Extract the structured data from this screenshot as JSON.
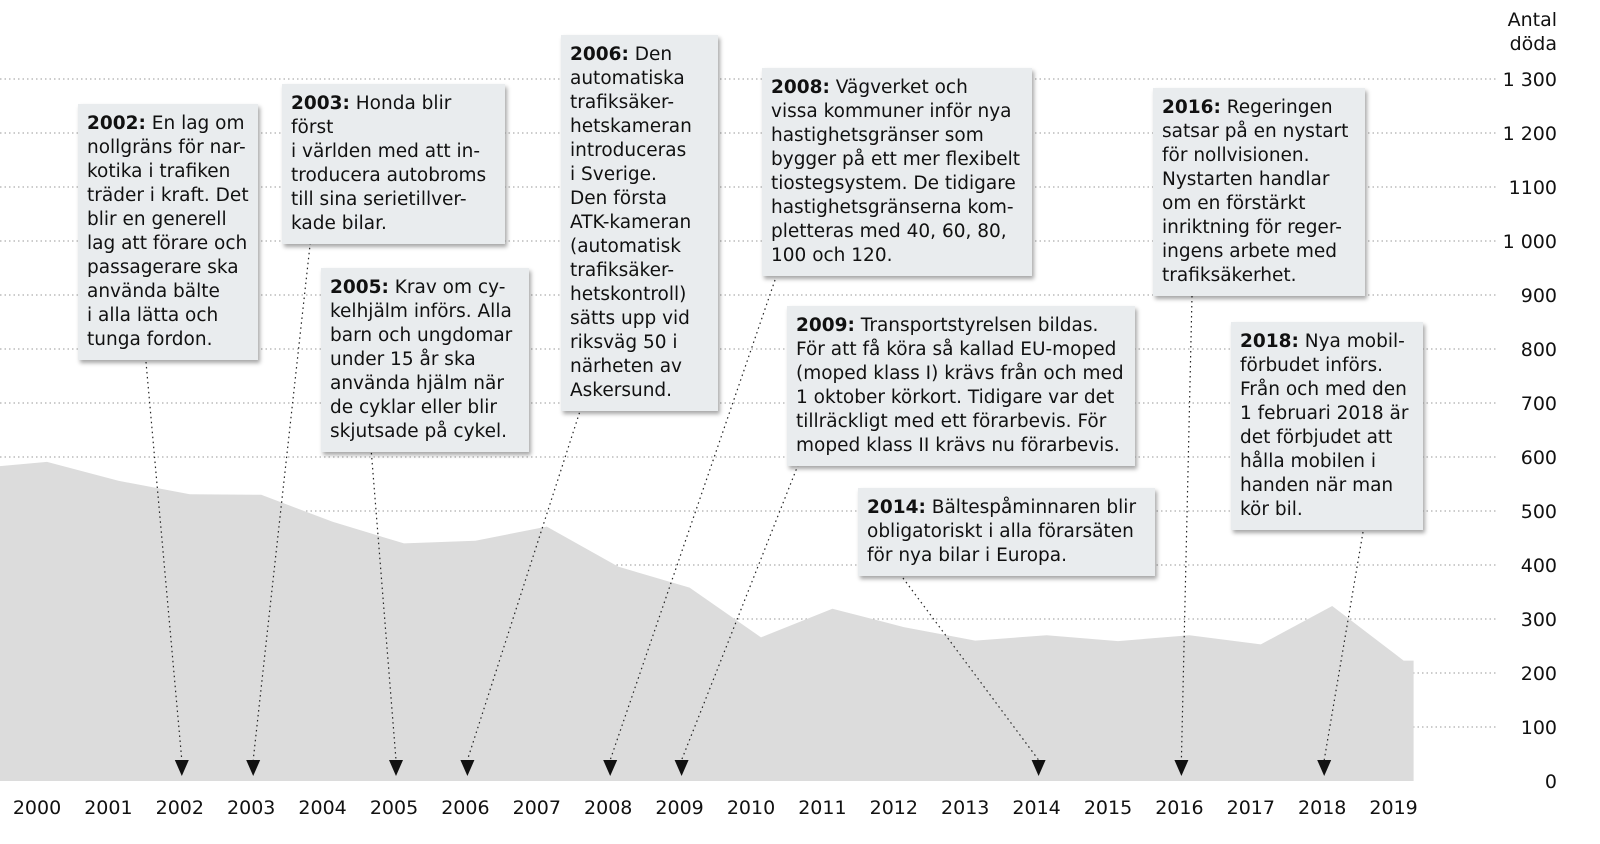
{
  "chart_data": {
    "type": "area",
    "x": [
      2000,
      2001,
      2002,
      2003,
      2004,
      2005,
      2006,
      2007,
      2008,
      2009,
      2010,
      2011,
      2012,
      2013,
      2014,
      2015,
      2016,
      2017,
      2018,
      2019
    ],
    "series": [
      {
        "values": [
          591,
          556,
          531,
          530,
          480,
          440,
          445,
          471,
          397,
          358,
          266,
          319,
          285,
          260,
          270,
          259,
          270,
          253,
          324,
          223
        ]
      }
    ],
    "ylabel": "Antal döda",
    "ylabel_lines": [
      "Antal",
      "döda"
    ],
    "ylim": [
      0,
      1300
    ],
    "yticks": [
      0,
      100,
      200,
      300,
      400,
      500,
      600,
      700,
      800,
      900,
      1000,
      1100,
      1200,
      1300
    ],
    "ytick_labels": [
      "0",
      "100",
      "200",
      "300",
      "400",
      "500",
      "600",
      "700",
      "800",
      "900",
      "1 000",
      "1100",
      "1 200",
      "1 300"
    ],
    "xtick_labels": [
      "2000",
      "2001",
      "2002",
      "2003",
      "2004",
      "2005",
      "2006",
      "2007",
      "2008",
      "2009",
      "2010",
      "2011",
      "2012",
      "2013",
      "2014",
      "2015",
      "2016",
      "2017",
      "2018",
      "2019"
    ],
    "grid": "horizontal-dotted",
    "colors": {
      "area": "#dcdcdc",
      "grid": "#9a9a9a",
      "text": "#111111"
    },
    "annotations": [
      {
        "year": "2002:",
        "text": " En lag om\nnollgräns för nar-\nkotika i trafiken\nträder i kraft. Det\nblir en generell\nlag att förare och\npassagerare ska\nanvända bälte\ni alla lätta och\ntunga fordon.",
        "target_year": 2002
      },
      {
        "year": "2003:",
        "text": " Honda blir först\ni världen med att in-\ntroducera autobroms\ntill sina serietillver-\nkade bilar.",
        "target_year": 2003
      },
      {
        "year": "2005:",
        "text": " Krav om cy-\nkelhjälm införs. Alla\nbarn och ungdomar\nunder 15 år ska\nanvända hjälm när\nde cyklar eller blir\nskjutsade på cykel.",
        "target_year": 2005
      },
      {
        "year": "2006:",
        "text": " Den\nautomatiska\ntrafiksäker-\nhetskameran\nintroduceras\ni Sverige.\nDen första\nATK-kameran\n(automatisk\ntrafiksäker-\nhetskontroll)\nsätts upp vid\nriksväg 50 i\nnärheten av\nAskersund.",
        "target_year": 2006
      },
      {
        "year": "2008:",
        "text": "  Vägverket och\nvissa kommuner inför nya\nhastighetsgränser som\nbygger på ett mer flexibelt\ntiostegsystem. De tidigare\nhastighetsgränserna kom-\npletteras med 40, 60, 80,\n100 och 120.",
        "target_year": 2008
      },
      {
        "year": "2009:",
        "text": "  Transportstyrelsen bildas.\nFör att få köra så kallad EU-moped\n(moped klass I) krävs från och med\n1 oktober körkort. Tidigare var det\ntillräckligt med ett förarbevis. För\nmoped klass II krävs nu förarbevis.",
        "target_year": 2009
      },
      {
        "year": "2014:",
        "text": " Bältespåminnaren blir\nobligatoriskt i alla förarsäten\nför nya bilar i Europa.",
        "target_year": 2014
      },
      {
        "year": "2016:",
        "text": " Regeringen\nsatsar på en nystart\nför nollvisionen.\nNystarten handlar\nom en förstärkt\ninriktning för reger-\ningens arbete med\ntrafiksäkerhet.",
        "target_year": 2016
      },
      {
        "year": "2018:",
        "text": " Nya mobil-\nförbudet införs.\nFrån och med den\n1 februari 2018 är\ndet förbjudet att\nhålla mobilen i\nhanden när man\nkör bil.",
        "target_year": 2018
      }
    ]
  }
}
